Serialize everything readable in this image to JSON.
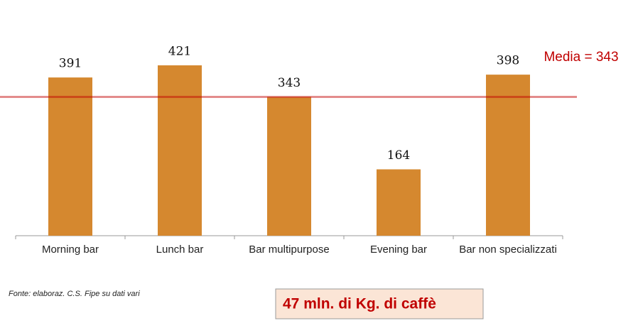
{
  "chart_data": {
    "type": "bar",
    "categories": [
      "Morning bar",
      "Lunch bar",
      "Bar multipurpose",
      "Evening bar",
      "Bar non specializzati"
    ],
    "values": [
      391,
      421,
      343,
      164,
      398
    ],
    "color": "#d5882f",
    "ylim": [
      0,
      500
    ],
    "mean_line": {
      "value": 343,
      "label": "Media = 343",
      "color": "#c00000"
    },
    "source": "Fonte: elaboraz. C.S. Fipe su dati vari",
    "callout": "47 mln. di Kg. di caffè"
  }
}
